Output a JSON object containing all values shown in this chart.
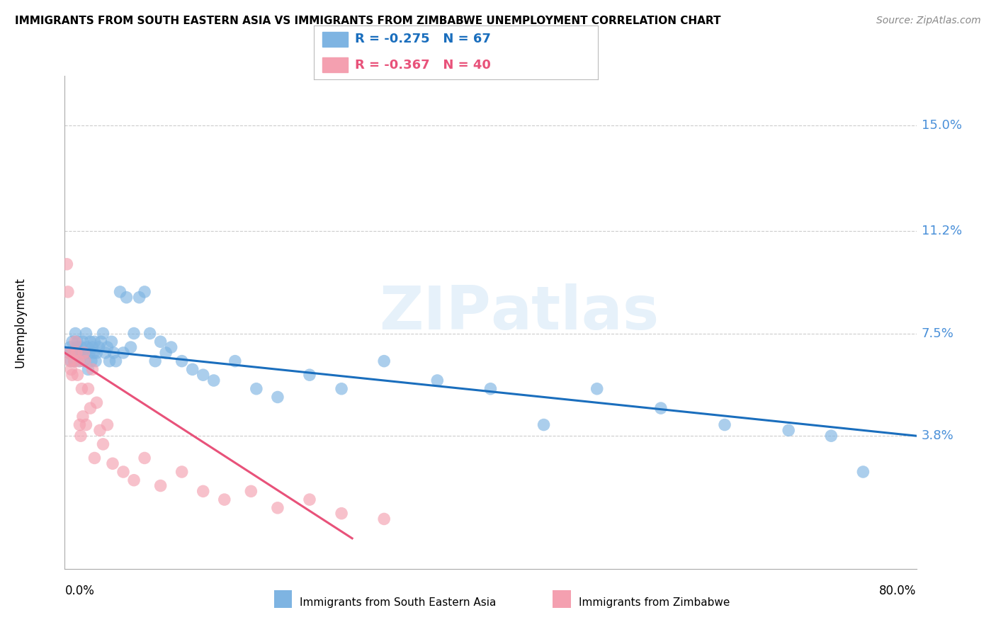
{
  "title": "IMMIGRANTS FROM SOUTH EASTERN ASIA VS IMMIGRANTS FROM ZIMBABWE UNEMPLOYMENT CORRELATION CHART",
  "source": "Source: ZipAtlas.com",
  "ylabel": "Unemployment",
  "ytick_labels": [
    "15.0%",
    "11.2%",
    "7.5%",
    "3.8%"
  ],
  "ytick_values": [
    0.15,
    0.112,
    0.075,
    0.038
  ],
  "xlim": [
    0.0,
    0.8
  ],
  "ylim": [
    -0.01,
    0.168
  ],
  "legend_blue_r": "-0.275",
  "legend_blue_n": "67",
  "legend_pink_r": "-0.367",
  "legend_pink_n": "40",
  "legend_label_blue": "Immigrants from South Eastern Asia",
  "legend_label_pink": "Immigrants from Zimbabwe",
  "blue_color": "#7EB4E2",
  "pink_color": "#F4A0B0",
  "blue_line_color": "#1A6EBD",
  "pink_line_color": "#E8527A",
  "blue_scatter_x": [
    0.004,
    0.005,
    0.006,
    0.007,
    0.008,
    0.009,
    0.01,
    0.011,
    0.012,
    0.013,
    0.014,
    0.015,
    0.016,
    0.017,
    0.018,
    0.019,
    0.02,
    0.021,
    0.022,
    0.023,
    0.024,
    0.025,
    0.026,
    0.027,
    0.028,
    0.029,
    0.03,
    0.032,
    0.034,
    0.036,
    0.038,
    0.04,
    0.042,
    0.044,
    0.046,
    0.048,
    0.052,
    0.055,
    0.058,
    0.062,
    0.065,
    0.07,
    0.075,
    0.08,
    0.085,
    0.09,
    0.095,
    0.1,
    0.11,
    0.12,
    0.13,
    0.14,
    0.16,
    0.18,
    0.2,
    0.23,
    0.26,
    0.3,
    0.35,
    0.4,
    0.45,
    0.5,
    0.56,
    0.62,
    0.68,
    0.72,
    0.75
  ],
  "blue_scatter_y": [
    0.068,
    0.07,
    0.065,
    0.072,
    0.068,
    0.065,
    0.075,
    0.07,
    0.072,
    0.068,
    0.065,
    0.07,
    0.068,
    0.072,
    0.065,
    0.068,
    0.075,
    0.07,
    0.062,
    0.068,
    0.072,
    0.065,
    0.07,
    0.068,
    0.072,
    0.065,
    0.068,
    0.07,
    0.072,
    0.075,
    0.068,
    0.07,
    0.065,
    0.072,
    0.068,
    0.065,
    0.09,
    0.068,
    0.088,
    0.07,
    0.075,
    0.088,
    0.09,
    0.075,
    0.065,
    0.072,
    0.068,
    0.07,
    0.065,
    0.062,
    0.06,
    0.058,
    0.065,
    0.055,
    0.052,
    0.06,
    0.055,
    0.065,
    0.058,
    0.055,
    0.042,
    0.055,
    0.048,
    0.042,
    0.04,
    0.038,
    0.025
  ],
  "pink_scatter_x": [
    0.002,
    0.003,
    0.004,
    0.005,
    0.006,
    0.007,
    0.008,
    0.009,
    0.01,
    0.011,
    0.012,
    0.013,
    0.014,
    0.015,
    0.016,
    0.017,
    0.018,
    0.019,
    0.02,
    0.022,
    0.024,
    0.026,
    0.028,
    0.03,
    0.033,
    0.036,
    0.04,
    0.045,
    0.055,
    0.065,
    0.075,
    0.09,
    0.11,
    0.13,
    0.15,
    0.175,
    0.2,
    0.23,
    0.26,
    0.3
  ],
  "pink_scatter_y": [
    0.1,
    0.09,
    0.068,
    0.065,
    0.062,
    0.06,
    0.068,
    0.065,
    0.072,
    0.068,
    0.06,
    0.065,
    0.042,
    0.038,
    0.055,
    0.045,
    0.068,
    0.065,
    0.042,
    0.055,
    0.048,
    0.062,
    0.03,
    0.05,
    0.04,
    0.035,
    0.042,
    0.028,
    0.025,
    0.022,
    0.03,
    0.02,
    0.025,
    0.018,
    0.015,
    0.018,
    0.012,
    0.015,
    0.01,
    0.008
  ],
  "blue_trendline_x": [
    0.0,
    0.8
  ],
  "blue_trendline_y": [
    0.07,
    0.038
  ],
  "pink_trendline_x": [
    0.0,
    0.27
  ],
  "pink_trendline_y": [
    0.068,
    0.001
  ]
}
